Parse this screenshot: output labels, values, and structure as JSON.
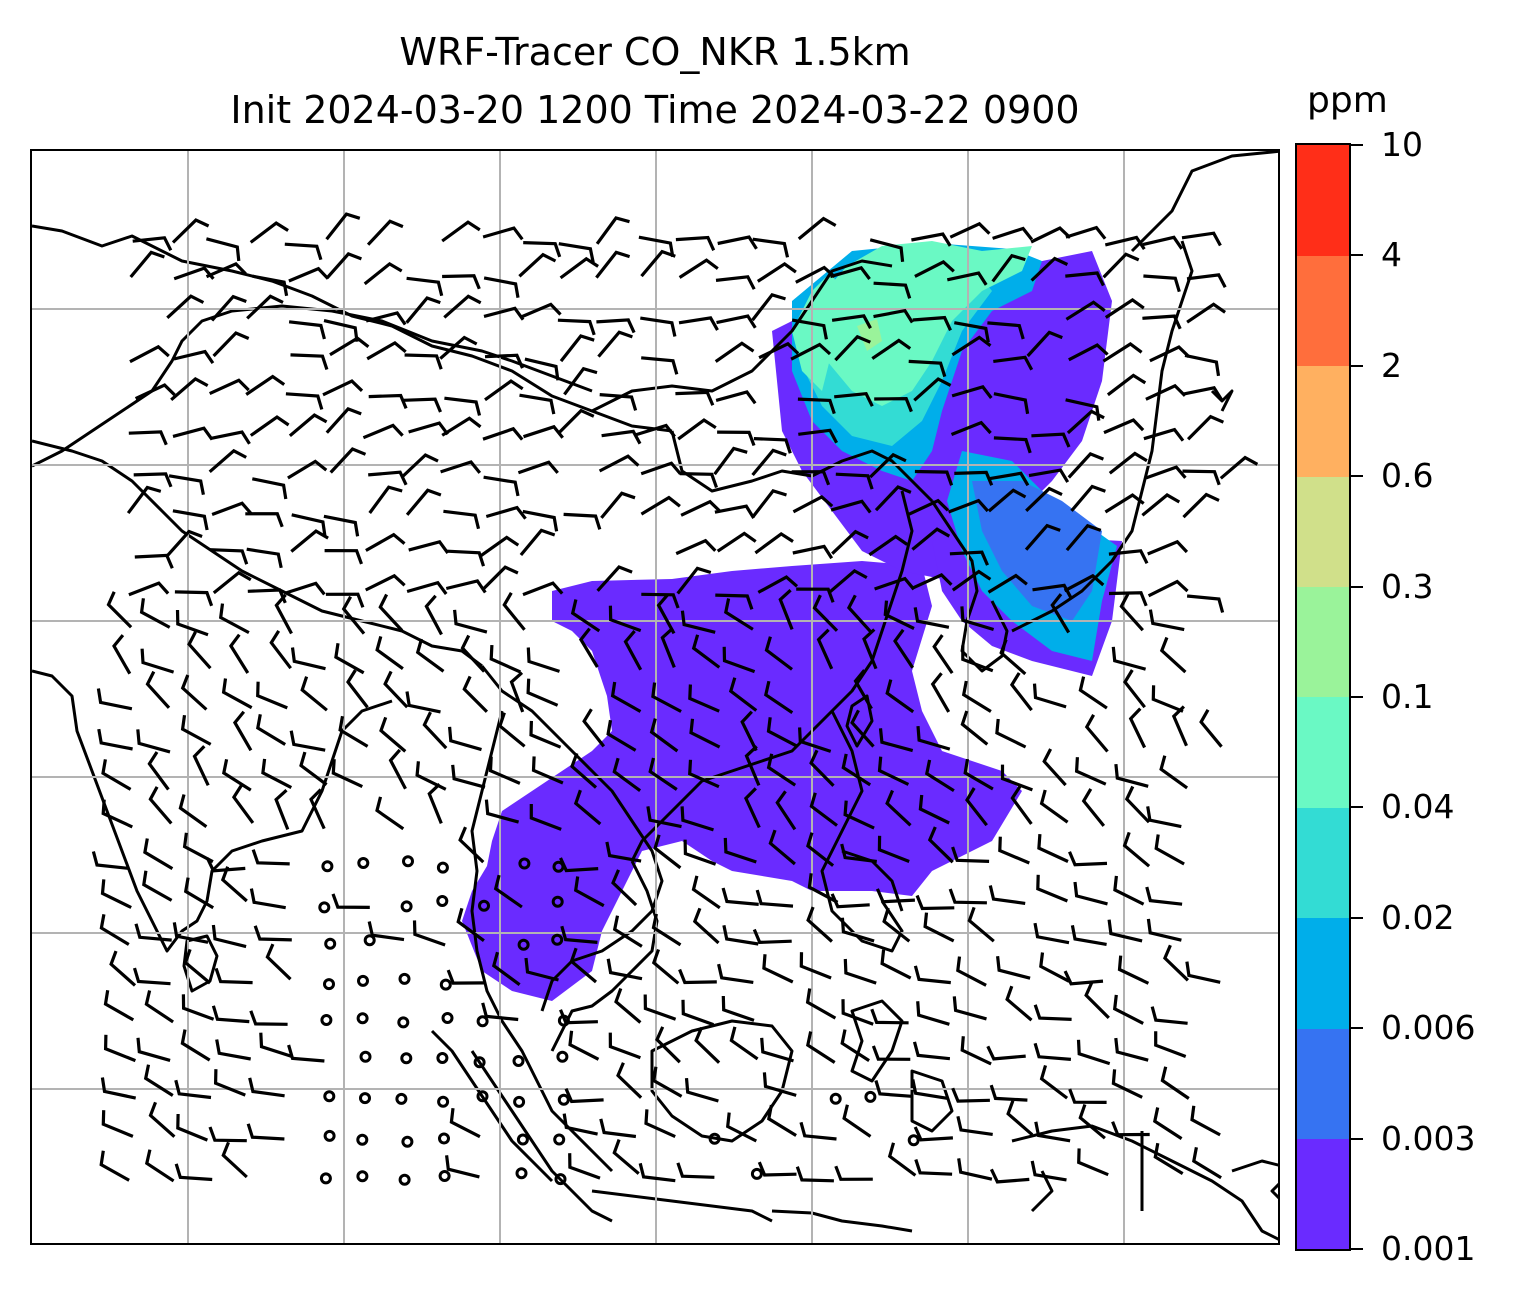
{
  "title": {
    "line1": "WRF-Tracer CO_NKR 1.5km",
    "line2": "Init 2024-03-20 1200 Time 2024-03-22 0900"
  },
  "colorbar": {
    "units": "ppm",
    "levels": [
      "0.001",
      "0.003",
      "0.006",
      "0.02",
      "0.04",
      "0.1",
      "0.3",
      "0.6",
      "2",
      "4",
      "10"
    ],
    "colors": [
      "#6a2bff",
      "#3673f2",
      "#00aeea",
      "#33dcd4",
      "#6af9c4",
      "#9af39a",
      "#d0e08a",
      "#ffb060",
      "#ff6e3c",
      "#ff2e18"
    ]
  },
  "map": {
    "gridline_color": "#b3b3b3",
    "coastline_color": "#000000",
    "wind_barbs": "black barbs and calm circles"
  }
}
